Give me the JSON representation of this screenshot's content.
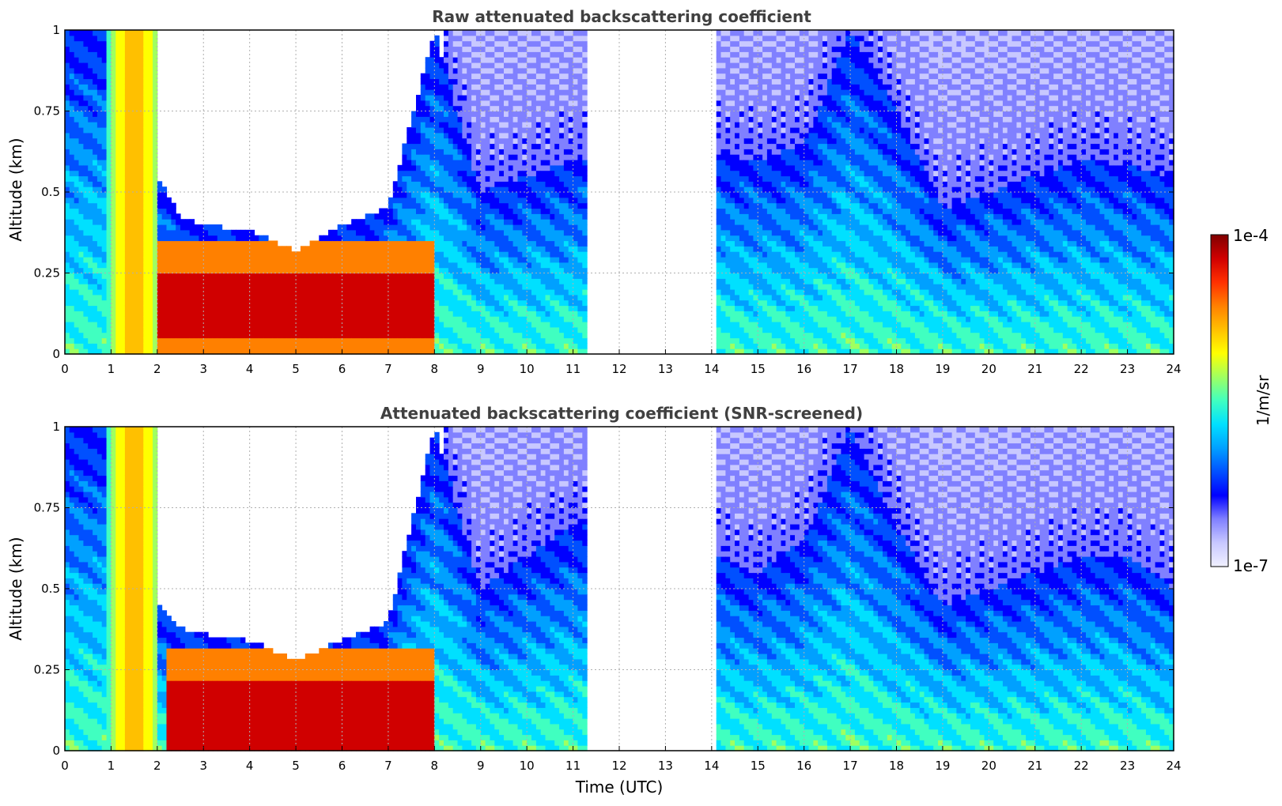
{
  "colorbar": {
    "label": "1/m/sr",
    "max_label": "1e-4",
    "min_label": "1e-7",
    "colormap": [
      "#f0f0ff",
      "#c8c8ff",
      "#8080ff",
      "#0000ff",
      "#0050ff",
      "#00a0ff",
      "#00e0ff",
      "#40ffc0",
      "#a0ff60",
      "#ffff00",
      "#ffc000",
      "#ff8000",
      "#ff3000",
      "#d00000",
      "#800000"
    ]
  },
  "chart_data": [
    {
      "type": "heatmap",
      "title": "Raw attenuated backscattering coefficient",
      "xlabel": "",
      "ylabel": "Altitude (km)",
      "xlim": [
        0,
        24
      ],
      "ylim": [
        0,
        1
      ],
      "x_ticks": [
        "0",
        "1",
        "2",
        "3",
        "4",
        "5",
        "6",
        "7",
        "8",
        "9",
        "10",
        "11",
        "12",
        "13",
        "14",
        "15",
        "16",
        "17",
        "18",
        "19",
        "20",
        "21",
        "22",
        "23",
        "24"
      ],
      "y_ticks": [
        "0",
        "0.25",
        "0.5",
        "0.75",
        "1"
      ],
      "y_tick_values": [
        0,
        0.25,
        0.5,
        0.75,
        1
      ],
      "grid": true,
      "data_gaps_utc": [
        [
          11.3,
          14.1
        ]
      ],
      "aerosol_layer_top_km": [
        [
          0,
          1.0
        ],
        [
          1,
          1.0
        ],
        [
          2,
          0.55
        ],
        [
          2.5,
          0.42
        ],
        [
          3,
          0.4
        ],
        [
          4,
          0.38
        ],
        [
          5,
          0.32
        ],
        [
          6,
          0.4
        ],
        [
          7,
          0.45
        ],
        [
          8,
          1.0
        ],
        [
          9,
          0.5
        ],
        [
          10,
          0.55
        ],
        [
          11,
          0.6
        ],
        [
          14.1,
          0.62
        ],
        [
          15,
          0.6
        ],
        [
          16,
          0.65
        ],
        [
          17,
          1.0
        ],
        [
          18,
          0.75
        ],
        [
          19,
          0.45
        ],
        [
          20,
          0.5
        ],
        [
          21,
          0.55
        ],
        [
          22,
          0.6
        ],
        [
          23,
          0.58
        ],
        [
          24,
          0.55
        ]
      ],
      "peak_layer": {
        "x_start": 2,
        "x_end": 8,
        "bottom_km": 0.05,
        "top_km": 0.25
      }
    },
    {
      "type": "heatmap",
      "title": "Attenuated backscattering coefficient (SNR-screened)",
      "xlabel": "Time (UTC)",
      "ylabel": "Altitude (km)",
      "xlim": [
        0,
        24
      ],
      "ylim": [
        0,
        1
      ],
      "x_ticks": [
        "0",
        "1",
        "2",
        "3",
        "4",
        "5",
        "6",
        "7",
        "8",
        "9",
        "10",
        "11",
        "12",
        "13",
        "14",
        "15",
        "16",
        "17",
        "18",
        "19",
        "20",
        "21",
        "22",
        "23",
        "24"
      ],
      "y_ticks": [
        "0",
        "0.25",
        "0.5",
        "0.75",
        "1"
      ],
      "y_tick_values": [
        0,
        0.25,
        0.5,
        0.75,
        1
      ],
      "grid": true,
      "data_gaps_utc": [
        [
          11.3,
          14.1
        ]
      ],
      "aerosol_layer_top_km": [
        [
          0,
          1.0
        ],
        [
          1,
          1.0
        ],
        [
          2,
          0.45
        ],
        [
          2.5,
          0.38
        ],
        [
          3,
          0.36
        ],
        [
          4,
          0.34
        ],
        [
          5,
          0.28
        ],
        [
          6,
          0.34
        ],
        [
          7,
          0.4
        ],
        [
          8,
          1.0
        ],
        [
          9,
          0.5
        ],
        [
          10,
          0.6
        ],
        [
          11,
          0.7
        ],
        [
          14.1,
          0.6
        ],
        [
          15,
          0.55
        ],
        [
          16,
          0.65
        ],
        [
          17,
          1.0
        ],
        [
          18,
          0.7
        ],
        [
          19,
          0.45
        ],
        [
          20,
          0.5
        ],
        [
          21,
          0.55
        ],
        [
          22,
          0.6
        ],
        [
          23,
          0.6
        ],
        [
          24,
          0.5
        ]
      ],
      "peak_layer": {
        "x_start": 2.2,
        "x_end": 8,
        "bottom_km": 0.0,
        "top_km": 0.22
      }
    }
  ]
}
